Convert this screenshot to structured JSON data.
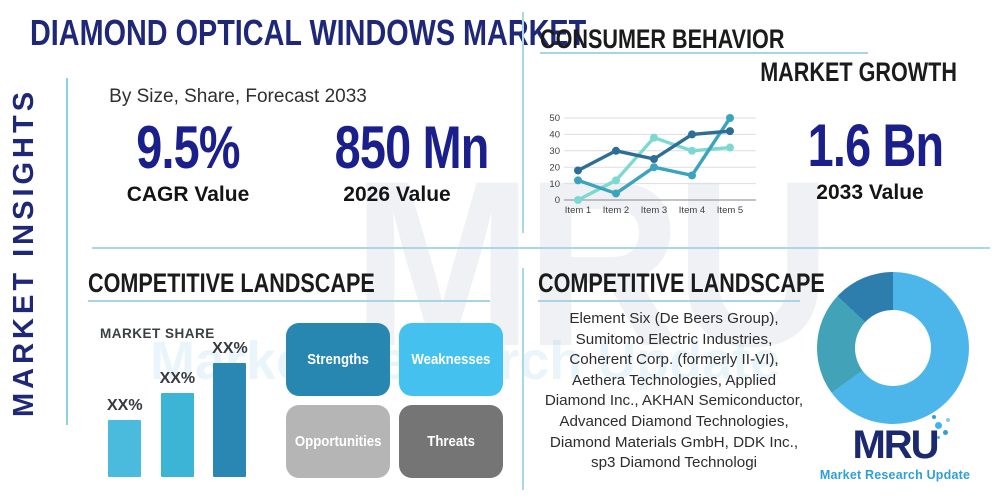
{
  "title": "DIAMOND OPTICAL WINDOWS MARKET",
  "sidebar": {
    "label": "MARKET INSIGHTS"
  },
  "subtitle": "By Size, Share, Forecast 2033",
  "stats": [
    {
      "value": "9.5%",
      "label": "CAGR Value"
    },
    {
      "value": "850 Mn",
      "label": "2026 Value"
    },
    {
      "value": "1.6 Bn",
      "label": "2033 Value"
    }
  ],
  "sections": {
    "consumer_behavior": "CONSUMER BEHAVIOR",
    "market_growth": "MARKET GROWTH",
    "competitive_landscape_left": "COMPETITIVE LANDSCAPE",
    "competitive_landscape_right": "COMPETITIVE LANDSCAPE"
  },
  "swot": [
    {
      "label": "Strengths",
      "color": "#2787b0"
    },
    {
      "label": "Weaknesses",
      "color": "#45c1f0"
    },
    {
      "label": "Opportunities",
      "color": "#b5b5b5"
    },
    {
      "label": "Threats",
      "color": "#757575"
    }
  ],
  "companies": {
    "lines": [
      "Element Six (De Beers Group),",
      "Sumitomo Electric Industries,",
      "Coherent Corp. (formerly II-VI),",
      "Aethera Technologies, Applied",
      "Diamond Inc., AKHAN Semiconductor,",
      "Advanced Diamond Technologies,",
      "Diamond Materials GmbH, DDK Inc.,",
      "sp3 Diamond Technologi"
    ]
  },
  "logo": {
    "text": "MRU",
    "tagline": "Market Research Update"
  },
  "watermark": {
    "text": "MRU",
    "subtext": "Market Research Update"
  },
  "chart_data": [
    {
      "type": "line",
      "title": "",
      "x": [
        "Item 1",
        "Item 2",
        "Item 3",
        "Item 4",
        "Item 5"
      ],
      "yticks": [
        0,
        10,
        20,
        30,
        40,
        50
      ],
      "ylim": [
        0,
        50
      ],
      "grid": true,
      "legend": "none",
      "series": [
        {
          "name": "light-cyan-series",
          "color": "#7cd9d2",
          "values": [
            0,
            12,
            38,
            30,
            32
          ]
        },
        {
          "name": "teal-series",
          "color": "#3aa4bc",
          "values": [
            12,
            4,
            20,
            15,
            50
          ]
        },
        {
          "name": "dark-blue-series",
          "color": "#2c6e96",
          "values": [
            18,
            30,
            25,
            40,
            42
          ]
        }
      ]
    },
    {
      "type": "bar",
      "title": "MARKET SHARE",
      "categories": [
        "",
        "",
        ""
      ],
      "value_labels": [
        "XX%",
        "XX%",
        "XX%"
      ],
      "values": [
        25,
        37,
        50
      ],
      "ylim": [
        0,
        55
      ],
      "bar_colors": [
        "#4abadd",
        "#3cb4d6",
        "#2a86b3"
      ]
    },
    {
      "type": "pie",
      "donut": true,
      "title": "",
      "segments": [
        {
          "name": "light-blue-segment",
          "value": 65,
          "color": "#4cb6ea"
        },
        {
          "name": "teal-segment",
          "value": 22,
          "color": "#41a2b8"
        },
        {
          "name": "dark-blue-segment",
          "value": 13,
          "color": "#2d7dad"
        }
      ]
    }
  ],
  "colors": {
    "navy_title": "#1f2878",
    "stat_navy": "#1b1f8c",
    "heading_dark": "#1b1b1b",
    "divider_blue": "#aad7e6",
    "accent_line": "#8fd0e3",
    "text_dark": "#2d2d2d",
    "logo_navy": "#1b2a6e",
    "logo_blue": "#2f9fd9"
  }
}
